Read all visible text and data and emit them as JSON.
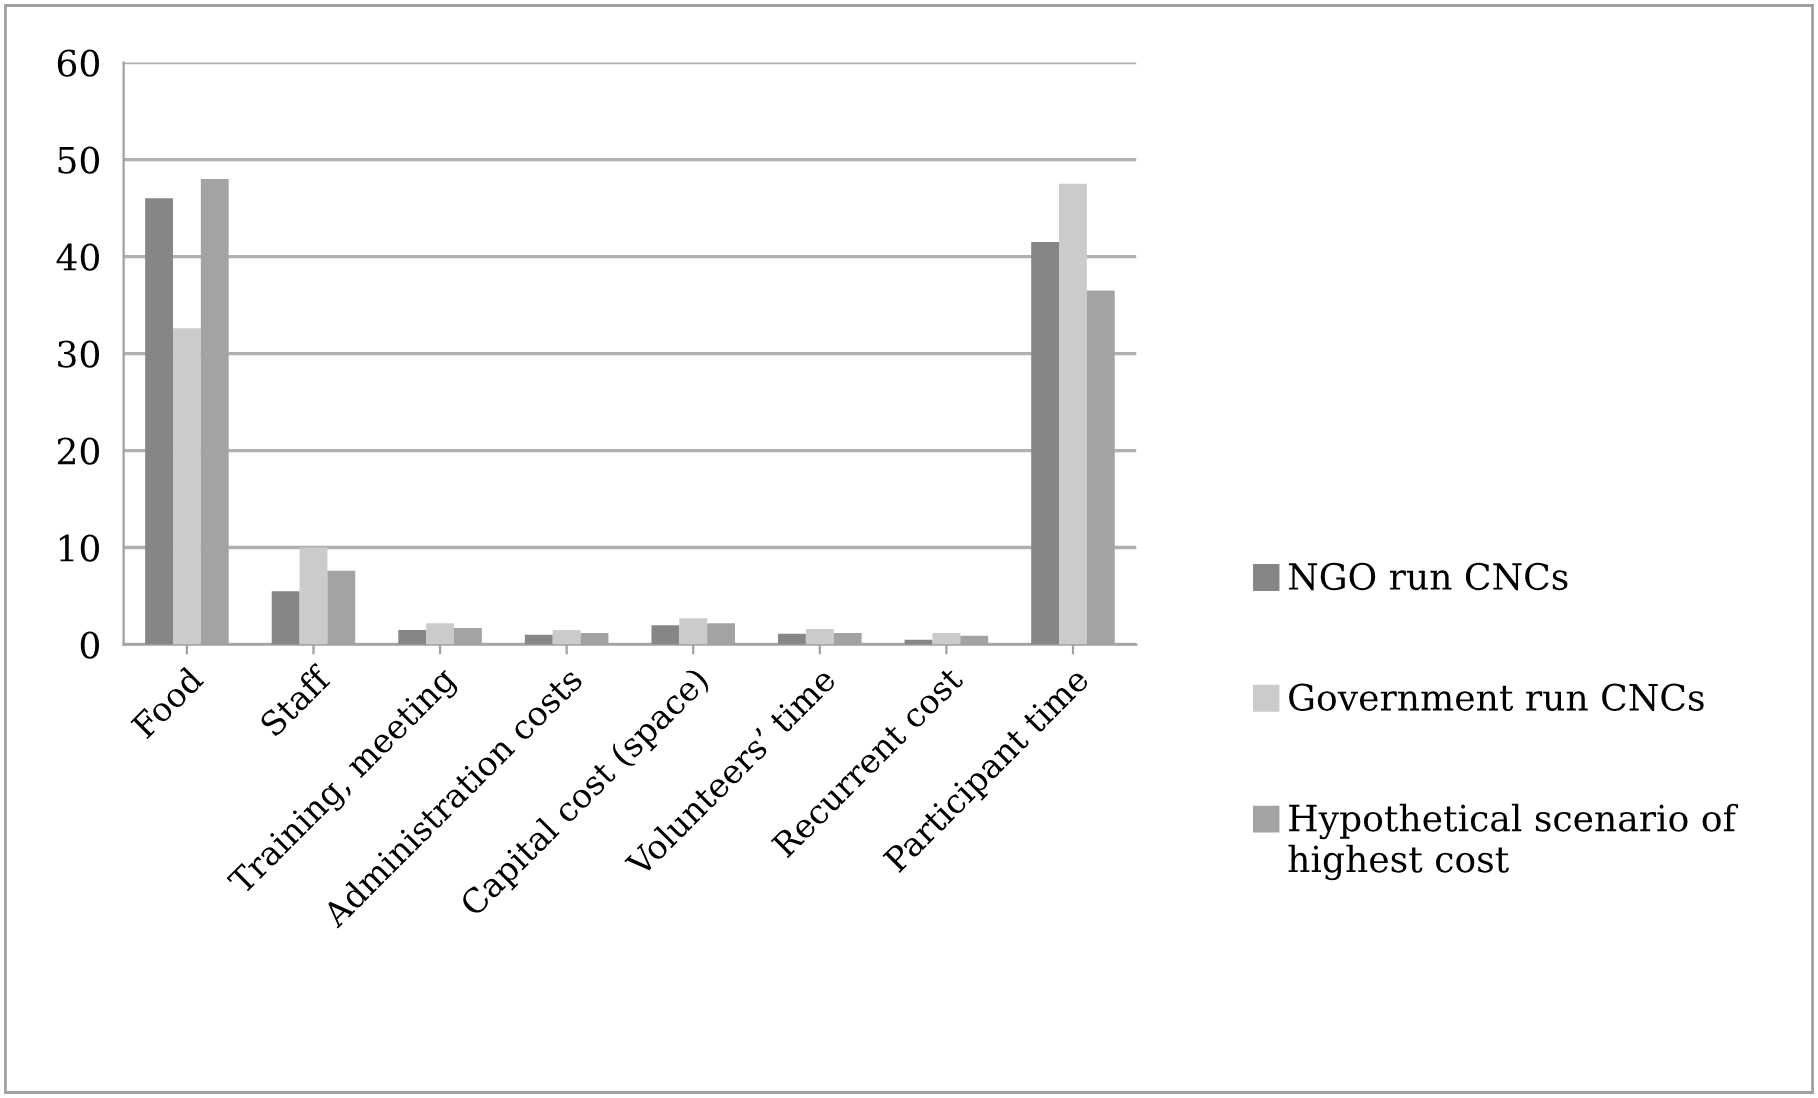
{
  "chart_data": {
    "type": "bar",
    "categories": [
      "Food",
      "Staff",
      "Training, meeting",
      "Administration costs",
      "Capital cost (space)",
      "Volunteers’ time",
      "Recurrent cost",
      "Participant time"
    ],
    "series": [
      {
        "name": "NGO run CNCs",
        "color": "#868686",
        "values": [
          46,
          5.5,
          1.5,
          1.0,
          2.0,
          1.1,
          0.5,
          41.5
        ]
      },
      {
        "name": "Government run CNCs",
        "color": "#cbcbcb",
        "values": [
          32.6,
          10,
          2.2,
          1.5,
          2.7,
          1.6,
          1.2,
          47.5
        ]
      },
      {
        "name": "Hypothetical scenario of highest cost",
        "color": "#a3a3a3",
        "values": [
          48,
          7.6,
          1.7,
          1.2,
          2.2,
          1.2,
          0.9,
          36.5
        ]
      }
    ],
    "ylim": [
      0,
      60
    ],
    "yticks": [
      0,
      10,
      20,
      30,
      40,
      50,
      60
    ],
    "grid": "y",
    "legend": "right"
  }
}
